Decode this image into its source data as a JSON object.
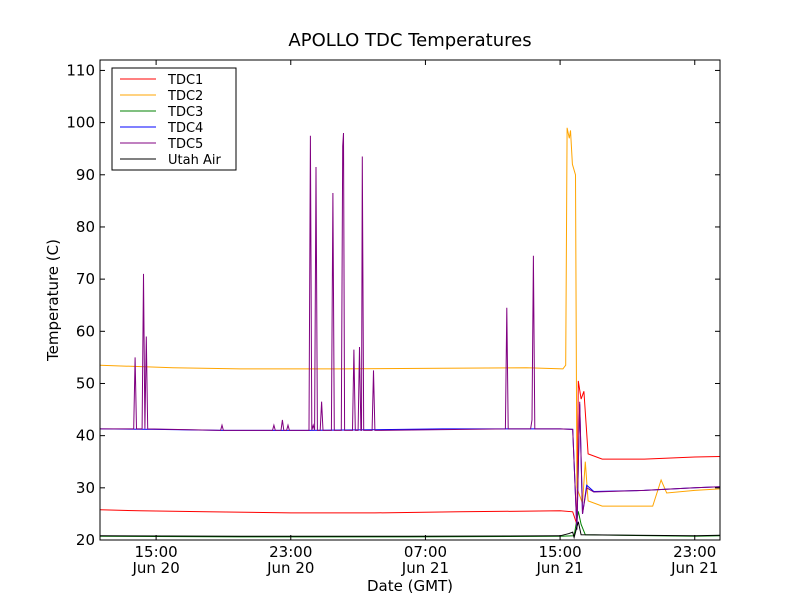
{
  "chart_data": {
    "type": "line",
    "title": "APOLLO TDC Temperatures",
    "xlabel": "Date (GMT)",
    "ylabel": "Temperature (C)",
    "xlim": [
      "2013-06-20 11:40",
      "2013-06-22 00:30"
    ],
    "ylim": [
      20,
      112
    ],
    "x_ticks": [
      {
        "t": "2013-06-20 15:00",
        "l1": "15:00",
        "l2": "Jun 20"
      },
      {
        "t": "2013-06-20 23:00",
        "l1": "23:00",
        "l2": "Jun 20"
      },
      {
        "t": "2013-06-21 07:00",
        "l1": "07:00",
        "l2": "Jun 21"
      },
      {
        "t": "2013-06-21 15:00",
        "l1": "15:00",
        "l2": "Jun 21"
      },
      {
        "t": "2013-06-21 23:00",
        "l1": "23:00",
        "l2": "Jun 21"
      }
    ],
    "y_ticks": [
      20,
      30,
      40,
      50,
      60,
      70,
      80,
      90,
      100,
      110
    ],
    "grid": false,
    "legend_position": "top-left",
    "series": [
      {
        "name": "TDC1",
        "color": "#ff0000",
        "points": [
          [
            "2013-06-20 11:40",
            25.8
          ],
          [
            "2013-06-20 14:00",
            25.6
          ],
          [
            "2013-06-20 18:00",
            25.4
          ],
          [
            "2013-06-20 23:00",
            25.2
          ],
          [
            "2013-06-21 04:00",
            25.2
          ],
          [
            "2013-06-21 09:00",
            25.4
          ],
          [
            "2013-06-21 15:00",
            25.6
          ],
          [
            "2013-06-21 15:45",
            25.4
          ],
          [
            "2013-06-21 16:00",
            23.0
          ],
          [
            "2013-06-21 16:05",
            50.5
          ],
          [
            "2013-06-21 16:15",
            47.0
          ],
          [
            "2013-06-21 16:25",
            48.5
          ],
          [
            "2013-06-21 16:40",
            36.5
          ],
          [
            "2013-06-21 17:30",
            35.5
          ],
          [
            "2013-06-21 20:00",
            35.5
          ],
          [
            "2013-06-21 23:00",
            35.9
          ],
          [
            "2013-06-22 00:30",
            36.0
          ]
        ]
      },
      {
        "name": "TDC2",
        "color": "#ffa500",
        "points": [
          [
            "2013-06-20 11:40",
            53.5
          ],
          [
            "2013-06-20 16:00",
            53.0
          ],
          [
            "2013-06-20 20:00",
            52.8
          ],
          [
            "2013-06-21 02:00",
            52.8
          ],
          [
            "2013-06-21 08:00",
            52.9
          ],
          [
            "2013-06-21 13:00",
            53.0
          ],
          [
            "2013-06-21 15:10",
            52.8
          ],
          [
            "2013-06-21 15:20",
            53.5
          ],
          [
            "2013-06-21 15:25",
            99.0
          ],
          [
            "2013-06-21 15:33",
            97.0
          ],
          [
            "2013-06-21 15:37",
            98.5
          ],
          [
            "2013-06-21 15:44",
            92.0
          ],
          [
            "2013-06-21 15:55",
            90.0
          ],
          [
            "2013-06-21 16:00",
            30.0
          ],
          [
            "2013-06-21 16:20",
            27.0
          ],
          [
            "2013-06-21 16:30",
            35.0
          ],
          [
            "2013-06-21 16:40",
            27.5
          ],
          [
            "2013-06-21 17:30",
            26.5
          ],
          [
            "2013-06-21 20:30",
            26.5
          ],
          [
            "2013-06-21 21:00",
            31.5
          ],
          [
            "2013-06-21 21:20",
            29.0
          ],
          [
            "2013-06-21 23:00",
            29.5
          ],
          [
            "2013-06-22 00:30",
            29.8
          ]
        ]
      },
      {
        "name": "TDC3",
        "color": "#008000",
        "points": [
          [
            "2013-06-20 11:40",
            20.7
          ],
          [
            "2013-06-20 20:00",
            20.6
          ],
          [
            "2013-06-21 06:00",
            20.6
          ],
          [
            "2013-06-21 15:00",
            20.7
          ],
          [
            "2013-06-21 15:50",
            20.8
          ],
          [
            "2013-06-21 16:05",
            25.5
          ],
          [
            "2013-06-21 16:15",
            23.0
          ],
          [
            "2013-06-21 16:30",
            21.0
          ],
          [
            "2013-06-21 23:00",
            20.7
          ],
          [
            "2013-06-22 00:30",
            20.8
          ]
        ]
      },
      {
        "name": "TDC4",
        "color": "#0000ff",
        "points": [
          [
            "2013-06-20 11:40",
            41.3
          ],
          [
            "2013-06-20 15:00",
            41.2
          ],
          [
            "2013-06-20 19:00",
            41.0
          ],
          [
            "2013-06-21 00:00",
            41.0
          ],
          [
            "2013-06-21 08:00",
            41.3
          ],
          [
            "2013-06-21 15:00",
            41.3
          ],
          [
            "2013-06-21 15:45",
            41.2
          ],
          [
            "2013-06-21 16:00",
            22.0
          ],
          [
            "2013-06-21 16:10",
            46.0
          ],
          [
            "2013-06-21 16:20",
            25.0
          ],
          [
            "2013-06-21 16:35",
            30.5
          ],
          [
            "2013-06-21 17:00",
            29.3
          ],
          [
            "2013-06-21 20:00",
            29.5
          ],
          [
            "2013-06-21 23:00",
            30.0
          ],
          [
            "2013-06-22 00:30",
            30.2
          ]
        ]
      },
      {
        "name": "TDC5",
        "color": "#800080",
        "points": [
          [
            "2013-06-20 11:40",
            41.3
          ],
          [
            "2013-06-20 13:40",
            41.3
          ],
          [
            "2013-06-20 13:45",
            55.0
          ],
          [
            "2013-06-20 13:50",
            41.3
          ],
          [
            "2013-06-20 14:10",
            41.3
          ],
          [
            "2013-06-20 14:15",
            71.0
          ],
          [
            "2013-06-20 14:20",
            41.3
          ],
          [
            "2013-06-20 14:25",
            59.0
          ],
          [
            "2013-06-20 14:30",
            41.3
          ],
          [
            "2013-06-20 18:50",
            41.0
          ],
          [
            "2013-06-20 18:55",
            42.0
          ],
          [
            "2013-06-20 19:00",
            41.0
          ],
          [
            "2013-06-20 21:55",
            41.0
          ],
          [
            "2013-06-20 22:00",
            42.0
          ],
          [
            "2013-06-20 22:05",
            41.0
          ],
          [
            "2013-06-20 22:25",
            41.0
          ],
          [
            "2013-06-20 22:30",
            43.0
          ],
          [
            "2013-06-20 22:35",
            41.0
          ],
          [
            "2013-06-20 22:45",
            41.0
          ],
          [
            "2013-06-20 22:50",
            42.0
          ],
          [
            "2013-06-20 22:55",
            41.0
          ],
          [
            "2013-06-21 00:05",
            41.0
          ],
          [
            "2013-06-21 00:10",
            97.5
          ],
          [
            "2013-06-21 00:15",
            41.0
          ],
          [
            "2013-06-21 00:20",
            42.0
          ],
          [
            "2013-06-21 00:25",
            41.0
          ],
          [
            "2013-06-21 00:30",
            91.5
          ],
          [
            "2013-06-21 00:35",
            41.0
          ],
          [
            "2013-06-21 00:45",
            41.0
          ],
          [
            "2013-06-21 00:50",
            46.5
          ],
          [
            "2013-06-21 00:55",
            41.0
          ],
          [
            "2013-06-21 01:25",
            41.0
          ],
          [
            "2013-06-21 01:30",
            86.5
          ],
          [
            "2013-06-21 01:35",
            41.0
          ],
          [
            "2013-06-21 02:00",
            41.0
          ],
          [
            "2013-06-21 02:05",
            95.5
          ],
          [
            "2013-06-21 02:08",
            98.0
          ],
          [
            "2013-06-21 02:12",
            41.0
          ],
          [
            "2013-06-21 02:40",
            41.0
          ],
          [
            "2013-06-21 02:45",
            56.5
          ],
          [
            "2013-06-21 02:50",
            41.0
          ],
          [
            "2013-06-21 03:00",
            41.0
          ],
          [
            "2013-06-21 03:05",
            57.0
          ],
          [
            "2013-06-21 03:10",
            41.0
          ],
          [
            "2013-06-21 03:12",
            41.0
          ],
          [
            "2013-06-21 03:15",
            93.5
          ],
          [
            "2013-06-21 03:20",
            41.0
          ],
          [
            "2013-06-21 03:50",
            41.0
          ],
          [
            "2013-06-21 03:55",
            52.5
          ],
          [
            "2013-06-21 04:00",
            41.0
          ],
          [
            "2013-06-21 11:45",
            41.3
          ],
          [
            "2013-06-21 11:50",
            64.5
          ],
          [
            "2013-06-21 11:55",
            41.3
          ],
          [
            "2013-06-21 13:15",
            41.3
          ],
          [
            "2013-06-21 13:20",
            43.0
          ],
          [
            "2013-06-21 13:25",
            74.5
          ],
          [
            "2013-06-21 13:30",
            41.3
          ],
          [
            "2013-06-21 15:00",
            41.3
          ],
          [
            "2013-06-21 15:45",
            41.2
          ],
          [
            "2013-06-21 16:00",
            22.0
          ],
          [
            "2013-06-21 16:10",
            46.5
          ],
          [
            "2013-06-21 16:20",
            25.0
          ],
          [
            "2013-06-21 16:35",
            30.0
          ],
          [
            "2013-06-21 17:00",
            29.2
          ],
          [
            "2013-06-21 20:00",
            29.5
          ],
          [
            "2013-06-21 23:00",
            30.0
          ],
          [
            "2013-06-22 00:30",
            30.2
          ]
        ]
      },
      {
        "name": "Utah Air",
        "color": "#000000",
        "points": [
          [
            "2013-06-20 11:40",
            20.8
          ],
          [
            "2013-06-20 20:00",
            20.7
          ],
          [
            "2013-06-21 06:00",
            20.7
          ],
          [
            "2013-06-21 15:00",
            20.8
          ],
          [
            "2013-06-21 15:30",
            21.2
          ],
          [
            "2013-06-21 15:45",
            21.5
          ],
          [
            "2013-06-21 15:50",
            20.5
          ],
          [
            "2013-06-21 16:05",
            23.5
          ],
          [
            "2013-06-21 16:15",
            21.0
          ],
          [
            "2013-06-21 23:00",
            20.8
          ],
          [
            "2013-06-22 00:30",
            20.9
          ]
        ]
      }
    ]
  }
}
